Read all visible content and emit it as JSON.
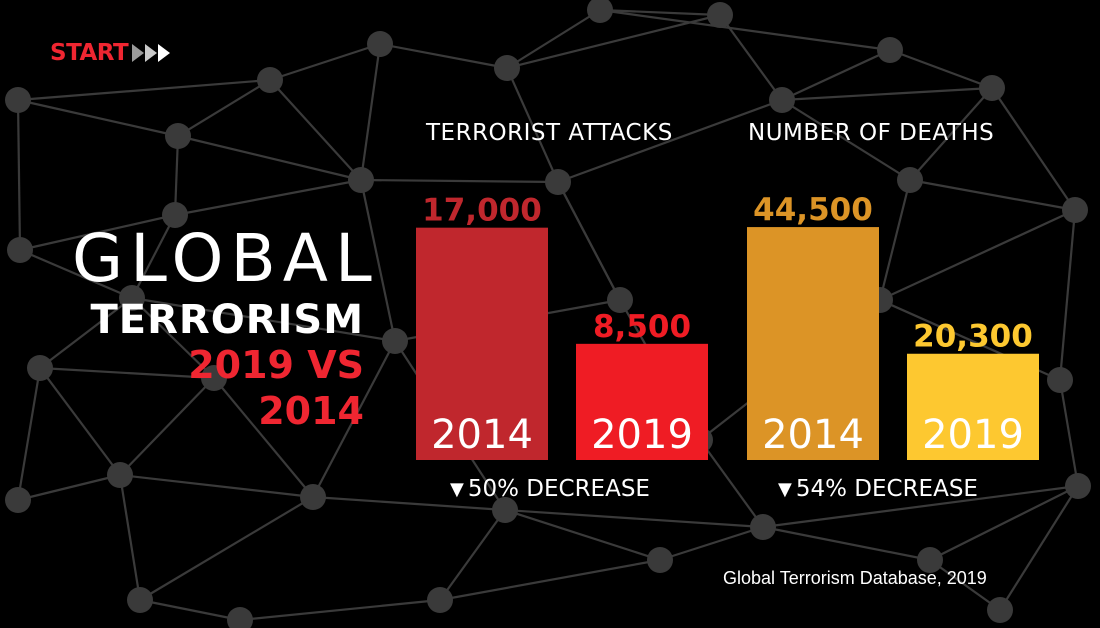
{
  "logo": {
    "text": "START",
    "color": "#ef2631"
  },
  "headline": {
    "line1": "GLOBAL",
    "line2": "TERRORISM",
    "line3": "2019 VS 2014"
  },
  "colors": {
    "background": "#000000",
    "network": "#3a3a3a",
    "attacks_2014": "#c0272d",
    "attacks_2019": "#ef1c24",
    "deaths_2014": "#dc9426",
    "deaths_2019": "#fdc830"
  },
  "chart_data": [
    {
      "type": "bar",
      "title": "TERRORIST ATTACKS",
      "categories": [
        "2014",
        "2019"
      ],
      "values": [
        17000,
        8500
      ],
      "value_labels": [
        "17,000",
        "8,500"
      ],
      "colors": [
        "#c0272d",
        "#ef1c24"
      ],
      "label_colors": [
        "#c0272d",
        "#ef1c24"
      ],
      "change": "50% DECREASE",
      "change_icon": "down-triangle-icon",
      "ylim": [
        0,
        18000
      ],
      "grid": false
    },
    {
      "type": "bar",
      "title": "NUMBER OF DEATHS",
      "categories": [
        "2014",
        "2019"
      ],
      "values": [
        44500,
        20300
      ],
      "value_labels": [
        "44,500",
        "20,300"
      ],
      "colors": [
        "#dc9426",
        "#fdc830"
      ],
      "label_colors": [
        "#dc9426",
        "#fdc830"
      ],
      "change": "54% DECREASE",
      "change_icon": "down-triangle-icon",
      "ylim": [
        0,
        47000
      ],
      "grid": false
    }
  ],
  "source": "Global Terrorism Database, 2019"
}
